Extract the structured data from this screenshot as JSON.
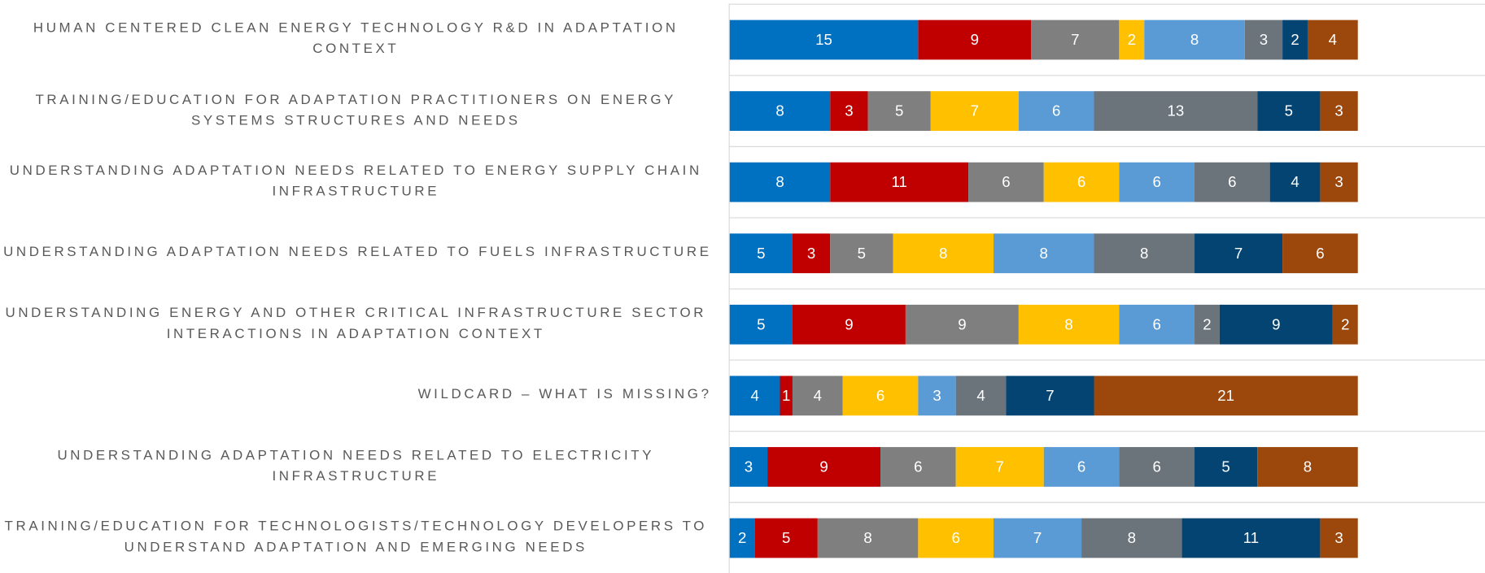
{
  "chart_data": {
    "type": "stacked-bar-horizontal",
    "categories": [
      "HUMAN CENTERED CLEAN ENERGY TECHNOLOGY R&D IN ADAPTATION CONTEXT",
      "TRAINING/EDUCATION FOR ADAPTATION PRACTITIONERS ON ENERGY SYSTEMS STRUCTURES AND NEEDS",
      "UNDERSTANDING ADAPTATION NEEDS RELATED TO ENERGY SUPPLY CHAIN INFRASTRUCTURE",
      "UNDERSTANDING ADAPTATION NEEDS RELATED TO FUELS INFRASTRUCTURE",
      "UNDERSTANDING ENERGY AND OTHER CRITICAL INFRASTRUCTURE SECTOR INTERACTIONS IN ADAPTATION CONTEXT",
      "WILDCARD – WHAT IS MISSING?",
      "UNDERSTANDING ADAPTATION NEEDS RELATED TO ELECTRICITY INFRASTRUCTURE",
      "TRAINING/EDUCATION FOR TECHNOLOGISTS/TECHNOLOGY DEVELOPERS TO UNDERSTAND ADAPTATION AND EMERGING NEEDS"
    ],
    "series": [
      {
        "color": "#0070c0",
        "values": [
          15,
          8,
          8,
          5,
          5,
          4,
          3,
          2
        ]
      },
      {
        "color": "#c00000",
        "values": [
          9,
          3,
          11,
          3,
          9,
          1,
          9,
          5
        ]
      },
      {
        "color": "#7f7f7f",
        "values": [
          7,
          5,
          6,
          5,
          9,
          4,
          6,
          8
        ]
      },
      {
        "color": "#ffc000",
        "values": [
          2,
          7,
          6,
          8,
          8,
          6,
          7,
          6
        ]
      },
      {
        "color": "#5b9bd5",
        "values": [
          8,
          6,
          6,
          8,
          6,
          3,
          6,
          7
        ]
      },
      {
        "color": "#6b737b",
        "values": [
          3,
          13,
          6,
          8,
          2,
          4,
          6,
          8
        ]
      },
      {
        "color": "#044473",
        "values": [
          2,
          5,
          4,
          7,
          9,
          7,
          5,
          11
        ]
      },
      {
        "color": "#9c480c",
        "values": [
          4,
          3,
          3,
          6,
          2,
          21,
          8,
          3
        ]
      }
    ],
    "xlim": [
      0,
      50
    ]
  }
}
